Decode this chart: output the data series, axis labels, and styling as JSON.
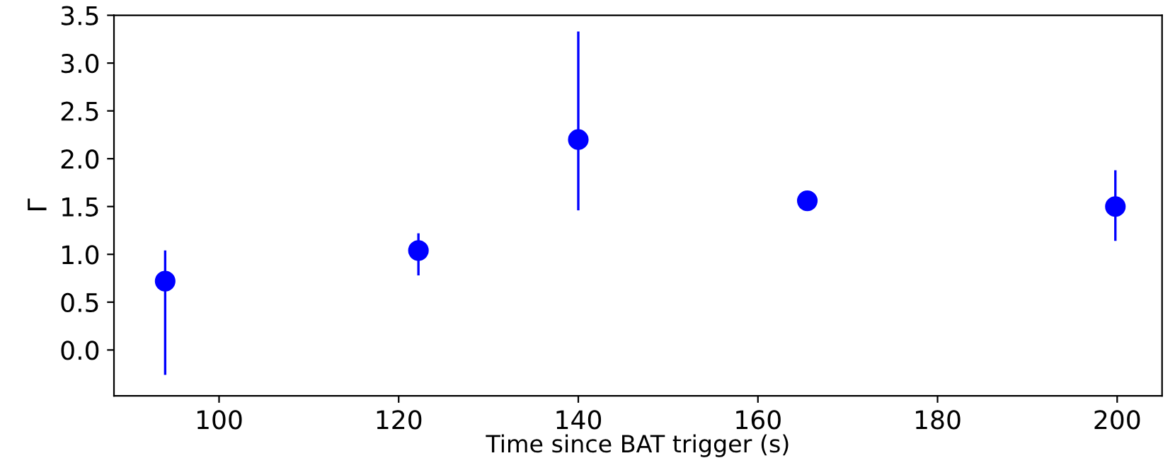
{
  "chart_data": {
    "type": "scatter",
    "xlabel": "Time since BAT trigger (s)",
    "ylabel": "Γ",
    "x": [
      94.0,
      122.2,
      140.0,
      165.5,
      199.8
    ],
    "values": [
      0.72,
      1.04,
      2.2,
      1.56,
      1.5
    ],
    "errors": [
      [
        -0.26,
        1.04
      ],
      [
        0.78,
        1.22
      ],
      [
        1.46,
        3.33
      ],
      null,
      [
        1.14,
        1.88
      ]
    ],
    "color": "#0000ff",
    "marker": "circle",
    "xlim": [
      88.3,
      205
    ],
    "xticks": [
      100,
      120,
      140,
      160,
      180,
      200
    ],
    "ylim": [
      -0.48,
      3.5
    ],
    "yticks": [
      {
        "value": 0,
        "label": "0.0"
      },
      0.5,
      {
        "value": 1,
        "label": "1.0"
      },
      1.5,
      {
        "value": 2,
        "label": "2.0"
      },
      2.5,
      {
        "value": 3,
        "label": "3.0"
      },
      3.5
    ],
    "grid": false
  }
}
